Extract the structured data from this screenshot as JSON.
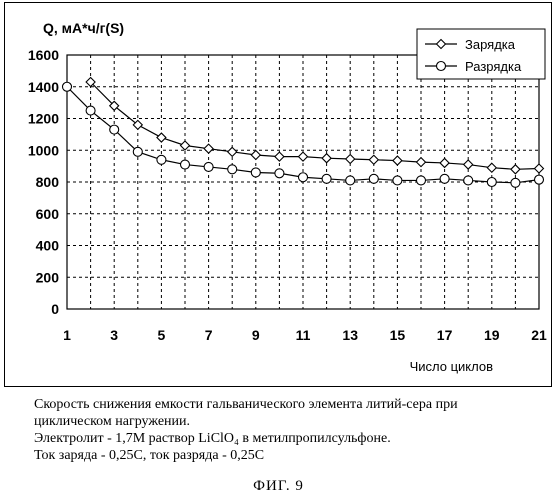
{
  "chart_data": {
    "type": "line",
    "ylabel": "Q, мА*ч/г(S)",
    "xlabel": "Число циклов",
    "ylim": [
      0,
      1600
    ],
    "xlim": [
      1,
      21
    ],
    "yticks": [
      "0",
      "200",
      "400",
      "600",
      "800",
      "1000",
      "1200",
      "1400",
      "1600"
    ],
    "xticks": [
      "1",
      "3",
      "5",
      "7",
      "9",
      "11",
      "13",
      "15",
      "17",
      "19",
      "21"
    ],
    "grid": "dashed",
    "legend_position": "top-right",
    "series": [
      {
        "name": "Зарядка",
        "marker": "diamond",
        "x": [
          2,
          3,
          4,
          5,
          6,
          7,
          8,
          9,
          10,
          11,
          12,
          13,
          14,
          15,
          16,
          17,
          18,
          19,
          20,
          21
        ],
        "values": [
          1430,
          1280,
          1160,
          1080,
          1030,
          1010,
          990,
          970,
          960,
          960,
          950,
          945,
          940,
          935,
          925,
          920,
          910,
          890,
          880,
          885
        ]
      },
      {
        "name": "Разрядка",
        "marker": "circle",
        "x": [
          1,
          2,
          3,
          4,
          5,
          6,
          7,
          8,
          9,
          10,
          11,
          12,
          13,
          14,
          15,
          16,
          17,
          18,
          19,
          20,
          21
        ],
        "values": [
          1400,
          1250,
          1130,
          990,
          940,
          910,
          895,
          880,
          860,
          855,
          830,
          820,
          810,
          820,
          810,
          810,
          820,
          810,
          800,
          795,
          815
        ]
      }
    ]
  },
  "caption": {
    "line1": "Скорость снижения емкости гальванического элемента литий-сера при",
    "line2": "циклическом нагружении.",
    "line3": "Электролит - 1,7М раствор LiClO₄ в метилпропилсульфоне.",
    "line4": "Ток заряда - 0,25С, ток разряда - 0,25С"
  },
  "figure_label": "ФИГ. 9"
}
